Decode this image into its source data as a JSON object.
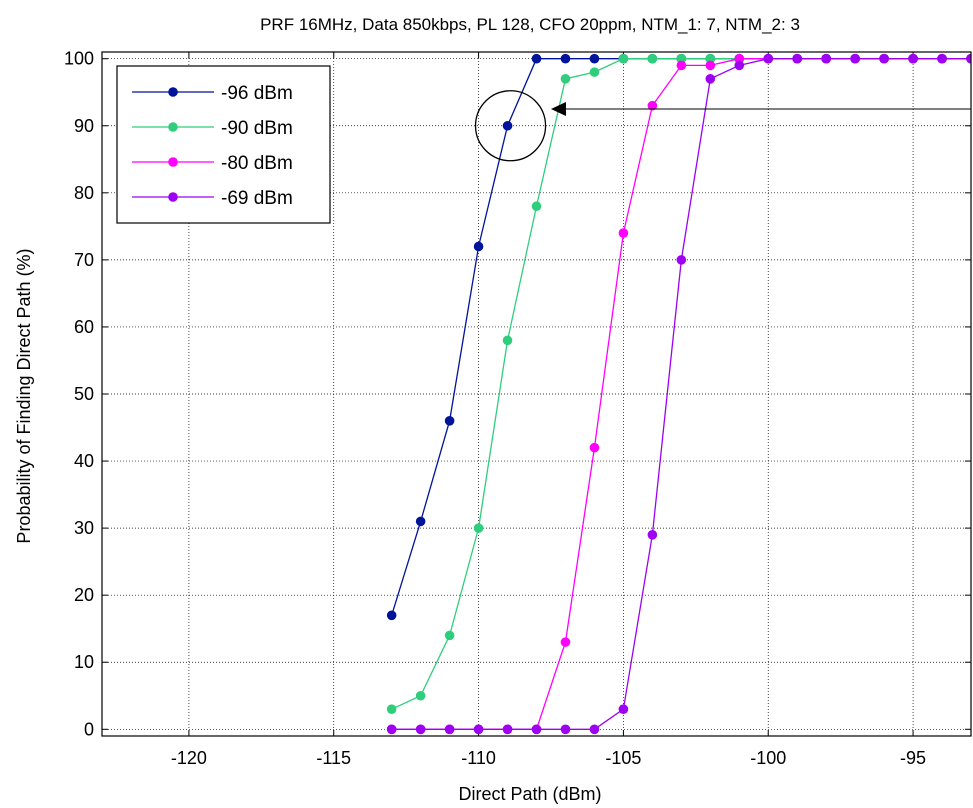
{
  "chart_data": {
    "type": "line",
    "title": "PRF 16MHz, Data 850kbps, PL 128, CFO 20ppm, NTM_1: 7, NTM_2: 3",
    "xlabel": "Direct Path (dBm)",
    "ylabel": "Probability of Finding Direct Path (%)",
    "xlim": [
      -123,
      -93
    ],
    "ylim": [
      -1,
      101
    ],
    "xticks": [
      -120,
      -115,
      -110,
      -105,
      -100,
      -95
    ],
    "yticks": [
      0,
      10,
      20,
      30,
      40,
      50,
      60,
      70,
      80,
      90,
      100
    ],
    "grid": true,
    "legend_position": "top-left",
    "series": [
      {
        "name": "-96 dBm",
        "color": "#00139b",
        "x": [
          -113,
          -112,
          -111,
          -110,
          -109,
          -108,
          -107,
          -106,
          -105,
          -104,
          -103,
          -102,
          -101,
          -100,
          -99,
          -98,
          -97,
          -96,
          -95,
          -94,
          -93
        ],
        "y": [
          17,
          31,
          46,
          72,
          90,
          100,
          100,
          100,
          100,
          100,
          100,
          100,
          100,
          100,
          100,
          100,
          100,
          100,
          100,
          100,
          100
        ]
      },
      {
        "name": "-90 dBm",
        "color": "#2fce7d",
        "x": [
          -113,
          -112,
          -111,
          -110,
          -109,
          -108,
          -107,
          -106,
          -105,
          -104,
          -103,
          -102,
          -101,
          -100,
          -99,
          -98,
          -97,
          -96,
          -95,
          -94,
          -93
        ],
        "y": [
          3,
          5,
          14,
          30,
          58,
          78,
          97,
          98,
          100,
          100,
          100,
          100,
          100,
          100,
          100,
          100,
          100,
          100,
          100,
          100,
          100
        ]
      },
      {
        "name": "-80 dBm",
        "color": "#ff00ff",
        "x": [
          -113,
          -112,
          -111,
          -110,
          -109,
          -108,
          -107,
          -106,
          -105,
          -104,
          -103,
          -102,
          -101,
          -100,
          -99,
          -98,
          -97,
          -96,
          -95,
          -94,
          -93
        ],
        "y": [
          0,
          0,
          0,
          0,
          0,
          0,
          13,
          42,
          74,
          93,
          99,
          99,
          100,
          100,
          100,
          100,
          100,
          100,
          100,
          100,
          100
        ]
      },
      {
        "name": "-69 dBm",
        "color": "#9e00f2",
        "x": [
          -113,
          -112,
          -111,
          -110,
          -109,
          -108,
          -107,
          -106,
          -105,
          -104,
          -103,
          -102,
          -101,
          -100,
          -99,
          -98,
          -97,
          -96,
          -95,
          -94,
          -93
        ],
        "y": [
          0,
          0,
          0,
          0,
          0,
          0,
          0,
          0,
          3,
          29,
          70,
          97,
          99,
          100,
          100,
          100,
          100,
          100,
          100,
          100,
          100
        ]
      }
    ],
    "annotations": [
      {
        "type": "circle",
        "center": [
          -109,
          90
        ]
      },
      {
        "type": "arrow",
        "from": [
          -93,
          92.5
        ],
        "to": [
          -107.5,
          92.5
        ]
      }
    ]
  }
}
